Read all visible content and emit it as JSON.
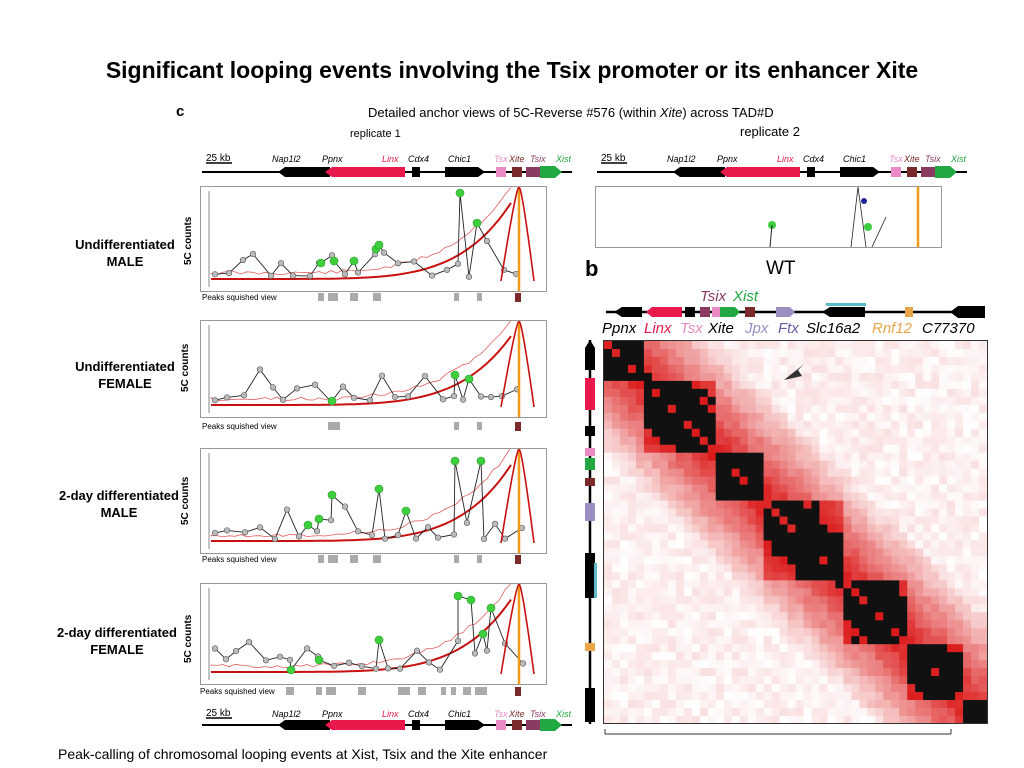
{
  "slide": {
    "title": "Significant looping events involving the Tsix promoter or its enhancer Xite",
    "caption": "Peak-calling of chromosomal looping events at Xist, Tsix and the Xite enhancer"
  },
  "panel_c": {
    "label": "c",
    "title": "Detailed anchor views of 5C-Reverse #576 (within Xite) across TAD#D",
    "replicate1": "replicate 1",
    "replicate2": "replicate 2",
    "scale": "25 kb",
    "genes": [
      "Nap1l2",
      "Ppnx",
      "Linx",
      "Cdx4",
      "Chic1",
      "Tsx",
      "Xite",
      "Tsix",
      "Xist"
    ],
    "y_axis_label": "5C counts",
    "peaks_label": "Peaks squished view",
    "rows": [
      {
        "label": "Undifferentiated MALE"
      },
      {
        "label": "Undifferentiated FEMALE"
      },
      {
        "label": "2-day differentiated MALE"
      },
      {
        "label": "2-day differentiated FEMALE"
      }
    ]
  },
  "panel_b": {
    "label": "b",
    "title": "WT",
    "top_genes": [
      "Tsix",
      "Xist"
    ],
    "genes": [
      "Ppnx",
      "Linx",
      "Tsx",
      "Xite",
      "Jpx",
      "Ftx",
      "Slc16a2",
      "Rnf12",
      "C77370"
    ]
  },
  "colors": {
    "Linx": "#e8194a",
    "Tsx": "#e98ac4",
    "Xite": "#7a2a2a",
    "Tsix": "#8b3a62",
    "Xist": "#22a843",
    "Jpx": "#9a8fc0",
    "Ftx": "#6a5aa8",
    "Rnf12": "#e8a54a",
    "peak": "#3ecf3e",
    "trend": "#c81010"
  }
}
